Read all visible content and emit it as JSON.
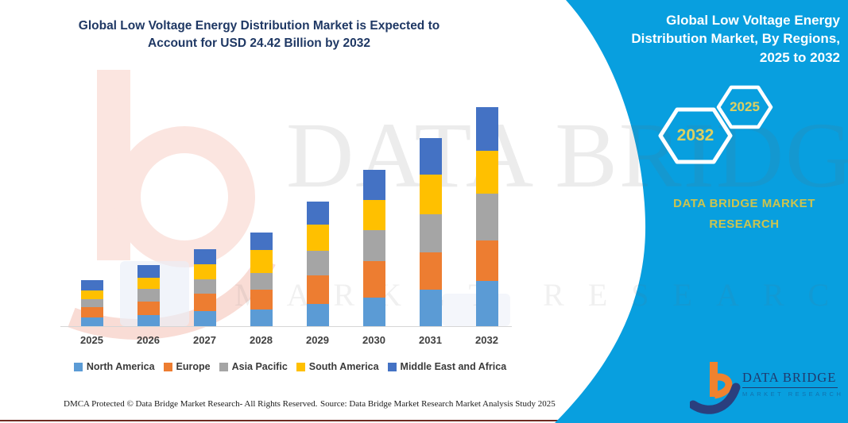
{
  "header": {
    "title": "Global Low Voltage Energy Distribution Market is Expected to Account for USD 24.42 Billion by 2032"
  },
  "side_panel": {
    "title": "Global Low Voltage Energy Distribution Market, By Regions, 2025 to 2032",
    "hexagons": [
      {
        "label": "2032"
      },
      {
        "label": "2025"
      }
    ],
    "brand": "DATA BRIDGE MARKET RESEARCH",
    "accent_color": "#089fdf",
    "hexagon_text_color": "#ddd060"
  },
  "chart_data": {
    "type": "bar",
    "stacked": true,
    "title": "Global Low Voltage Energy Distribution Market, By Regions, 2025 to 2032",
    "unit": "USD Billion",
    "categories": [
      "2025",
      "2026",
      "2027",
      "2028",
      "2029",
      "2030",
      "2031",
      "2032"
    ],
    "series": [
      {
        "name": "North America",
        "color": "#5B9BD5",
        "values": [
          0.97,
          1.24,
          1.68,
          1.86,
          2.48,
          3.19,
          4.07,
          5.04
        ]
      },
      {
        "name": "Europe",
        "color": "#ED7D31",
        "values": [
          1.15,
          1.5,
          1.95,
          2.21,
          3.19,
          4.07,
          4.16,
          4.51
        ]
      },
      {
        "name": "Asia Pacific",
        "color": "#A5A5A5",
        "values": [
          0.88,
          1.42,
          1.59,
          1.86,
          2.74,
          3.45,
          4.25,
          5.22
        ]
      },
      {
        "name": "South America",
        "color": "#FFC000",
        "values": [
          0.97,
          1.24,
          1.68,
          2.57,
          2.92,
          3.36,
          4.43,
          4.78
        ]
      },
      {
        "name": "Middle East and Africa",
        "color": "#4472C4",
        "values": [
          1.15,
          1.42,
          1.68,
          1.95,
          2.57,
          3.36,
          4.07,
          4.87
        ]
      }
    ],
    "totals": [
      5.12,
      6.82,
      8.58,
      10.45,
      13.9,
      17.43,
      20.98,
      24.42
    ],
    "highlight_total_2032": "24.42",
    "ylim": [
      0,
      24.42
    ],
    "gridlines": false,
    "y_axis_visible": false,
    "legend_position": "bottom"
  },
  "watermarks": {
    "text_large": "DATA BRIDGE",
    "text_small": "MARKET RESEARCH"
  },
  "footer": {
    "left": "DMCA Protected © Data Bridge Market Research-  All Rights Reserved.",
    "source": "Source: Data Bridge Market Research  Market Analysis Study 2025"
  },
  "logo": {
    "name": "DATA BRIDGE",
    "tagline": "MARKET RESEARCH"
  }
}
